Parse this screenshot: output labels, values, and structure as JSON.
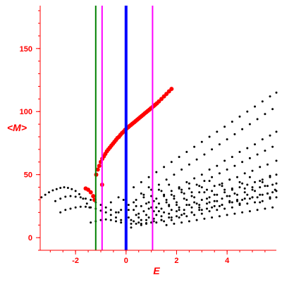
{
  "chart_data": {
    "type": "scatter",
    "title": "",
    "xlabel": "E",
    "ylabel": "<M>",
    "xlim": [
      -3.4,
      5.95
    ],
    "ylim": [
      -10,
      184
    ],
    "x_ticks": [
      -2,
      0,
      2,
      4
    ],
    "x_tick_labels": [
      "-2",
      "0",
      "2",
      "4"
    ],
    "y_ticks": [
      0,
      50,
      100,
      150
    ],
    "y_tick_labels": [
      "0",
      "50",
      "100",
      "150"
    ],
    "grid": false,
    "legend": "none",
    "vertical_lines": [
      {
        "x": -1.2,
        "color": "#008000",
        "width": 2
      },
      {
        "x": -0.95,
        "color": "#ff00ff",
        "width": 2
      },
      {
        "x": 0.0,
        "color": "#0000ff",
        "width": 4
      },
      {
        "x": 1.05,
        "color": "#ff00ff",
        "width": 2
      }
    ],
    "series": [
      {
        "color": "#000000",
        "marker_size": 1.5,
        "x": [
          -3.35,
          -3.2,
          -3.05,
          -2.9,
          -2.75,
          -2.6,
          -2.45,
          -2.3,
          -2.15,
          -2.0,
          -1.85,
          -1.7,
          -1.55,
          -1.45,
          -2.8,
          -2.6,
          -2.4,
          -2.2,
          -2.0,
          -1.8,
          -1.6,
          -1.4,
          -1.2,
          -1.0,
          -0.8,
          -0.6,
          -0.4,
          -2.6,
          -2.4,
          -2.2,
          -2.0,
          -1.8,
          -1.6,
          -1.4,
          -1.2,
          -1.0,
          -0.8,
          -0.6,
          -0.4,
          -0.2,
          -1.4,
          -1.2,
          -1.0,
          -0.8,
          -0.6,
          -0.4,
          -0.2,
          0.0,
          0.2,
          0.4,
          0.6,
          0.8,
          -0.6,
          -0.3,
          0.0,
          0.3,
          0.6,
          0.9,
          1.2,
          1.5,
          1.8,
          2.1,
          2.4,
          2.7,
          3.0,
          3.3,
          3.6,
          3.9,
          4.2,
          4.5,
          4.8,
          5.1,
          5.4,
          5.7,
          5.95,
          -0.2,
          0.1,
          0.4,
          0.7,
          1.0,
          1.3,
          1.6,
          1.9,
          2.2,
          2.5,
          2.8,
          3.1,
          3.4,
          3.7,
          4.0,
          4.3,
          4.6,
          4.9,
          5.2,
          5.5,
          5.8,
          0.0,
          0.3,
          0.6,
          0.9,
          1.2,
          1.5,
          1.8,
          2.1,
          2.4,
          2.7,
          3.0,
          3.3,
          3.6,
          3.9,
          4.2,
          4.5,
          4.8,
          5.1,
          5.4,
          5.7,
          5.95,
          0.1,
          0.4,
          0.7,
          1.0,
          1.3,
          1.6,
          1.9,
          2.2,
          2.5,
          2.8,
          3.1,
          3.4,
          3.7,
          4.0,
          4.3,
          4.6,
          4.9,
          5.2,
          5.5,
          5.8,
          0.2,
          0.5,
          0.8,
          1.1,
          1.4,
          1.7,
          2.0,
          2.3,
          2.6,
          2.9,
          3.2,
          3.5,
          3.8,
          4.1,
          4.4,
          4.7,
          5.0,
          5.3,
          5.6,
          5.95,
          0.3,
          0.6,
          0.9,
          1.2,
          1.5,
          1.8,
          2.1,
          2.4,
          2.7,
          3.0,
          3.3,
          3.6,
          3.9,
          4.2,
          4.5,
          4.8,
          5.1,
          5.4,
          5.7,
          5.95,
          0.5,
          0.8,
          1.1,
          1.4,
          1.7,
          2.0,
          2.3,
          2.6,
          2.9,
          3.2,
          3.5,
          3.8,
          4.1,
          4.4,
          4.7,
          5.0,
          5.3,
          5.6,
          5.95,
          0.8,
          1.1,
          1.4,
          1.7,
          2.0,
          2.3,
          2.6,
          2.9,
          3.2,
          3.5,
          3.8,
          4.1,
          4.4,
          4.7,
          5.0,
          5.3,
          5.6,
          5.95,
          1.2,
          1.5,
          1.8,
          2.1,
          2.4,
          2.7,
          3.0,
          3.3,
          3.6,
          3.9,
          4.2,
          4.5,
          4.8,
          5.1,
          5.4,
          5.7,
          5.95,
          1.6,
          1.9,
          2.2,
          2.5,
          2.8,
          3.1,
          3.4,
          3.7,
          4.0,
          4.3,
          4.6,
          4.9,
          5.2,
          5.5,
          5.8,
          0.2,
          0.6,
          1.0,
          1.4,
          1.8,
          2.2,
          2.6,
          3.0,
          3.4,
          3.8,
          4.2,
          4.6,
          5.0,
          5.4,
          5.8,
          0.4,
          0.8,
          1.2,
          1.6,
          2.0,
          2.4,
          2.8,
          3.2,
          3.6,
          4.0,
          4.4,
          4.8,
          5.2,
          5.6,
          -0.3,
          0.1,
          0.5,
          0.9,
          1.3,
          1.7,
          2.1,
          2.5,
          2.9,
          3.3,
          3.7,
          4.1,
          4.5,
          4.9,
          5.3,
          5.7,
          -0.1,
          0.3,
          0.7,
          1.1,
          1.5,
          1.9,
          2.3,
          2.7,
          3.1,
          3.5,
          3.9,
          4.3,
          4.7,
          5.1,
          5.5,
          5.9,
          0.6,
          1.0,
          1.4,
          1.8,
          2.2,
          2.6,
          3.0,
          3.4,
          3.8,
          4.2,
          4.6,
          5.0,
          5.4,
          5.8,
          0.9,
          1.3,
          1.7,
          2.1,
          2.5,
          2.9,
          3.3,
          3.7,
          4.1,
          4.5,
          4.9,
          5.3,
          5.7
        ],
        "y": [
          32,
          34,
          36,
          37.5,
          38.5,
          39.5,
          40,
          39.5,
          38.5,
          37,
          34.5,
          31,
          27,
          24,
          29,
          31,
          32.5,
          33,
          32.5,
          32,
          31,
          30,
          28,
          26,
          24,
          22,
          20,
          20,
          22,
          23,
          24,
          24.5,
          24.5,
          24,
          23,
          21.5,
          20,
          18,
          16,
          14,
          12,
          13,
          14,
          14.5,
          14,
          13,
          12,
          11,
          11,
          11,
          11,
          11.5,
          28,
          32,
          36,
          40,
          44,
          48,
          52,
          56,
          60,
          64,
          68,
          72,
          76,
          80,
          84,
          88,
          92,
          96,
          100,
          104,
          108,
          112,
          115,
          22,
          26,
          30,
          34,
          38,
          42,
          46,
          50,
          54,
          58,
          62,
          66,
          70,
          74,
          78,
          82,
          86,
          90,
          94,
          98,
          102,
          19,
          22,
          25,
          28,
          31,
          34,
          37,
          40,
          44,
          47,
          50,
          54,
          57,
          61,
          64,
          68,
          71,
          74,
          78,
          81,
          84,
          16,
          18,
          21,
          24,
          27,
          30,
          33,
          36,
          39,
          42,
          45,
          48,
          51,
          54,
          57,
          60,
          63,
          66,
          69,
          72,
          14,
          16,
          18,
          21,
          23,
          26,
          28,
          31,
          33,
          36,
          38,
          41,
          43,
          46,
          48,
          51,
          53,
          56,
          58,
          61,
          13,
          14,
          16,
          18,
          20,
          22,
          24,
          26,
          28,
          30,
          32,
          34,
          36,
          38,
          40,
          42,
          44,
          46,
          48,
          50,
          12,
          14,
          15,
          17,
          19,
          21,
          22,
          24,
          26,
          27,
          29,
          31,
          33,
          34,
          36,
          38,
          40,
          41,
          43,
          11,
          13,
          14,
          16,
          17,
          19,
          20,
          22,
          23,
          25,
          26,
          28,
          29,
          31,
          32,
          34,
          35,
          37,
          12,
          13,
          14,
          16,
          17,
          18,
          19,
          21,
          22,
          23,
          24,
          26,
          27,
          28,
          29,
          31,
          32,
          10,
          11,
          12,
          13,
          14,
          15,
          16,
          17,
          18,
          19,
          20,
          21,
          22,
          23,
          24,
          8,
          10,
          12,
          14,
          16,
          18,
          20,
          22,
          24,
          26,
          28,
          30,
          32,
          34,
          36,
          25,
          27,
          24,
          28,
          26,
          30,
          27,
          31,
          29,
          33,
          30,
          34,
          32,
          35,
          20,
          22,
          19,
          23,
          21,
          25,
          22,
          26,
          24,
          28,
          25,
          29,
          27,
          31,
          28,
          32,
          30,
          28,
          32,
          29,
          33,
          31,
          35,
          32,
          36,
          34,
          38,
          35,
          39,
          37,
          41,
          38,
          35,
          33,
          37,
          34,
          38,
          36,
          40,
          37,
          41,
          39,
          43,
          40,
          44,
          42,
          40,
          38,
          42,
          39,
          43,
          41,
          45,
          42,
          46,
          44,
          48,
          45,
          49
        ]
      },
      {
        "color": "#ff0000",
        "marker_size": 3,
        "x": [
          -1.18,
          -1.12,
          -1.06,
          -1.0,
          -0.94,
          -0.88,
          -0.82,
          -0.76,
          -0.7,
          -0.64,
          -0.58,
          -0.52,
          -0.46,
          -0.4,
          -0.34,
          -0.28,
          -0.22,
          -0.16,
          -0.1,
          -0.04,
          0.02,
          0.08,
          0.14,
          0.2,
          0.26,
          0.32,
          0.38,
          0.44,
          0.5,
          0.56,
          0.62,
          0.68,
          0.74,
          0.8,
          0.86,
          0.92,
          0.98,
          1.04,
          1.1,
          1.16,
          1.22,
          1.3,
          1.4,
          1.5,
          1.6,
          1.7,
          1.8,
          -1.6,
          -1.5,
          -1.4,
          -1.3,
          -1.25,
          -0.95
        ],
        "y": [
          50,
          54,
          57,
          60,
          62.5,
          64.5,
          66.5,
          68.5,
          70,
          71.5,
          73,
          74.5,
          76,
          77.5,
          79,
          80,
          81.5,
          83,
          84,
          85.5,
          86.5,
          87.5,
          88.5,
          89.5,
          90.5,
          91.5,
          92.5,
          93.5,
          94.5,
          95.5,
          96.5,
          97.5,
          98.5,
          99.5,
          100.5,
          101.5,
          102.5,
          103.5,
          104.5,
          105.5,
          106.5,
          108,
          110,
          112,
          114,
          116,
          118,
          39,
          38,
          36,
          33,
          30,
          42
        ]
      }
    ]
  }
}
